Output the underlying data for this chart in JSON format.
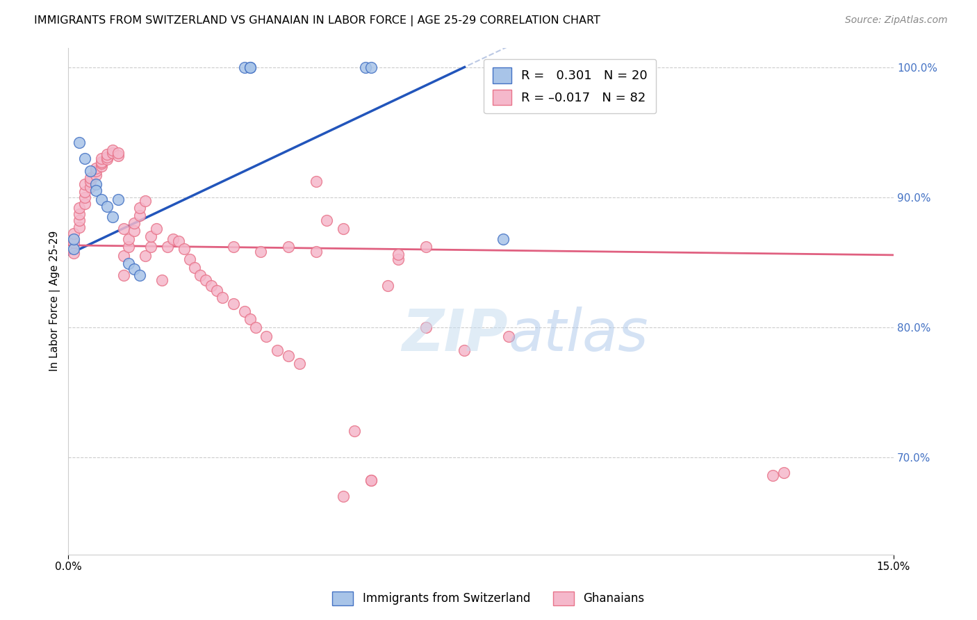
{
  "title": "IMMIGRANTS FROM SWITZERLAND VS GHANAIAN IN LABOR FORCE | AGE 25-29 CORRELATION CHART",
  "source": "Source: ZipAtlas.com",
  "ylabel": "In Labor Force | Age 25-29",
  "x_range": [
    0.0,
    0.15
  ],
  "y_range": [
    0.625,
    1.015
  ],
  "swiss_R": 0.301,
  "swiss_N": 20,
  "ghana_R": -0.017,
  "ghana_N": 82,
  "swiss_color": "#a8c4e8",
  "ghana_color": "#f5b8cb",
  "swiss_edge_color": "#4472c4",
  "ghana_edge_color": "#e8748a",
  "swiss_line_color": "#2255bb",
  "ghana_line_color": "#e06080",
  "legend_label_swiss": "Immigrants from Switzerland",
  "legend_label_ghana": "Ghanaians",
  "swiss_x": [
    0.001,
    0.001,
    0.002,
    0.003,
    0.004,
    0.005,
    0.005,
    0.006,
    0.007,
    0.008,
    0.009,
    0.011,
    0.012,
    0.013,
    0.032,
    0.033,
    0.033,
    0.054,
    0.055,
    0.079
  ],
  "swiss_y": [
    0.86,
    0.868,
    0.942,
    0.93,
    0.92,
    0.91,
    0.905,
    0.898,
    0.893,
    0.885,
    0.898,
    0.849,
    0.845,
    0.84,
    1.0,
    1.0,
    1.0,
    1.0,
    1.0,
    0.868
  ],
  "ghana_x": [
    0.001,
    0.001,
    0.001,
    0.002,
    0.002,
    0.002,
    0.002,
    0.003,
    0.003,
    0.003,
    0.003,
    0.004,
    0.004,
    0.004,
    0.005,
    0.005,
    0.005,
    0.006,
    0.006,
    0.006,
    0.006,
    0.007,
    0.007,
    0.007,
    0.008,
    0.008,
    0.009,
    0.009,
    0.01,
    0.01,
    0.01,
    0.011,
    0.011,
    0.012,
    0.012,
    0.013,
    0.013,
    0.014,
    0.014,
    0.015,
    0.015,
    0.016,
    0.017,
    0.018,
    0.019,
    0.02,
    0.021,
    0.022,
    0.023,
    0.024,
    0.025,
    0.026,
    0.027,
    0.028,
    0.03,
    0.032,
    0.033,
    0.034,
    0.036,
    0.038,
    0.04,
    0.042,
    0.045,
    0.047,
    0.05,
    0.052,
    0.055,
    0.058,
    0.06,
    0.065,
    0.072,
    0.08,
    0.03,
    0.035,
    0.04,
    0.045,
    0.05,
    0.055,
    0.06,
    0.065,
    0.128,
    0.13
  ],
  "ghana_y": [
    0.857,
    0.865,
    0.872,
    0.877,
    0.882,
    0.887,
    0.892,
    0.895,
    0.9,
    0.904,
    0.91,
    0.908,
    0.912,
    0.915,
    0.917,
    0.92,
    0.922,
    0.924,
    0.926,
    0.927,
    0.93,
    0.929,
    0.931,
    0.933,
    0.934,
    0.936,
    0.932,
    0.934,
    0.876,
    0.855,
    0.84,
    0.862,
    0.868,
    0.874,
    0.88,
    0.886,
    0.892,
    0.897,
    0.855,
    0.862,
    0.87,
    0.876,
    0.836,
    0.862,
    0.868,
    0.866,
    0.86,
    0.852,
    0.846,
    0.84,
    0.836,
    0.832,
    0.828,
    0.823,
    0.818,
    0.812,
    0.806,
    0.8,
    0.793,
    0.782,
    0.778,
    0.772,
    0.912,
    0.882,
    0.876,
    0.72,
    0.682,
    0.832,
    0.852,
    0.8,
    0.782,
    0.793,
    0.862,
    0.858,
    0.862,
    0.858,
    0.67,
    0.682,
    0.856,
    0.862,
    0.686,
    0.688
  ]
}
